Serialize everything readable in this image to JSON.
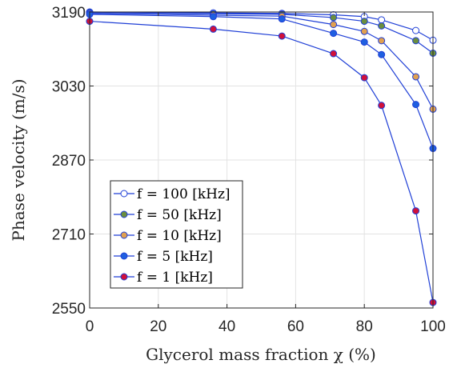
{
  "chart_data": {
    "type": "line",
    "xlabel": "Glycerol mass fraction χ (%)",
    "ylabel": "Phase velocity (m/s)",
    "xlim": [
      0,
      100
    ],
    "ylim": [
      2550,
      3190
    ],
    "x_ticks": [
      "0",
      "20",
      "40",
      "60",
      "80",
      "100"
    ],
    "y_ticks": [
      "2550",
      "2710",
      "2870",
      "3030",
      "3190"
    ],
    "grid": true,
    "legend_placement": "lower-left",
    "line_color": "#1f3fd6",
    "x": [
      0,
      36,
      56,
      71,
      80,
      85,
      95,
      100
    ],
    "series": [
      {
        "name": "f = 100 [kHz]",
        "marker_color": "#ffffff",
        "values": [
          3190,
          3188,
          3187,
          3184,
          3180,
          3173,
          3150,
          3129
        ]
      },
      {
        "name": "f = 50 [kHz]",
        "marker_color": "#6b8e3e",
        "values": [
          3189,
          3186,
          3185,
          3178,
          3170,
          3160,
          3128,
          3101
        ]
      },
      {
        "name": "f = 10 [kHz]",
        "marker_color": "#e0a050",
        "values": [
          3187,
          3183,
          3181,
          3163,
          3148,
          3128,
          3050,
          2980
        ]
      },
      {
        "name": "f = 5 [kHz]",
        "marker_color": "#1f5fe0",
        "values": [
          3185,
          3180,
          3175,
          3144,
          3125,
          3098,
          2990,
          2895
        ]
      },
      {
        "name": "f = 1 [kHz]",
        "marker_color": "#d0103a",
        "values": [
          3170,
          3153,
          3138,
          3100,
          3048,
          2988,
          2760,
          2562
        ]
      }
    ]
  }
}
